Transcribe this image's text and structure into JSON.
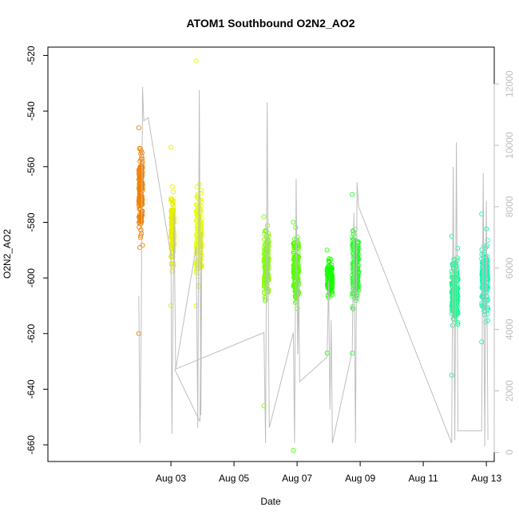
{
  "chart_data": {
    "type": "scatter",
    "title": "ATOM1 Southbound O2N2_AO2",
    "xlabel": "Date",
    "ylabel": "O2N2_AO2",
    "ylim": [
      -666,
      -517
    ],
    "xlim": [
      -0.9,
      13.25
    ],
    "xlim_note": "x values are days of August (e.g. 3.0 = Aug 03 00:00)",
    "y2lim": [
      -300,
      13200
    ],
    "x_ticks": [
      {
        "value": 3,
        "label": "Aug 03"
      },
      {
        "value": 5,
        "label": "Aug 05"
      },
      {
        "value": 7,
        "label": "Aug 07"
      },
      {
        "value": 9,
        "label": "Aug 09"
      },
      {
        "value": 11,
        "label": "Aug 11"
      },
      {
        "value": 13,
        "label": "Aug 13"
      }
    ],
    "y_ticks": [
      -660,
      -640,
      -620,
      -600,
      -580,
      -560,
      -540,
      -520
    ],
    "y2_ticks": [
      0,
      2000,
      4000,
      6000,
      8000,
      10000,
      12000
    ],
    "grid": false,
    "legend": "none",
    "colors": {
      "trace": "#bebebe",
      "axis": "#000000",
      "secondary_axis": "#bebebe"
    },
    "scatter_series": [
      {
        "color": "#f08000",
        "x_start": 1.98,
        "x_end": 2.1,
        "y_center": -570,
        "y_spread": 12,
        "y_min": -620,
        "y_max": -546,
        "n": 170
      },
      {
        "color": "#e6ee00",
        "x_start": 3.0,
        "x_end": 3.1,
        "y_center": -582,
        "y_spread": 10,
        "y_min": -610,
        "y_max": -553,
        "n": 130
      },
      {
        "color": "#e6ff00",
        "x_start": 3.8,
        "x_end": 3.98,
        "y_center": -585,
        "y_spread": 12,
        "y_min": -610,
        "y_max": -522,
        "n": 190
      },
      {
        "color": "#80ff00",
        "x_start": 5.95,
        "x_end": 6.1,
        "y_center": -596,
        "y_spread": 10,
        "y_min": -646,
        "y_max": -578,
        "n": 160
      },
      {
        "color": "#55ff00",
        "x_start": 6.88,
        "x_end": 7.05,
        "y_center": -597,
        "y_spread": 10,
        "y_min": -662,
        "y_max": -580,
        "n": 170
      },
      {
        "color": "#1aff00",
        "x_start": 7.95,
        "x_end": 8.12,
        "y_center": -600,
        "y_spread": 5,
        "y_min": -627,
        "y_max": -590,
        "n": 140
      },
      {
        "color": "#22ff22",
        "x_start": 8.75,
        "x_end": 8.95,
        "y_center": -596,
        "y_spread": 10,
        "y_min": -627,
        "y_max": -570,
        "n": 200
      },
      {
        "color": "#00ff88",
        "x_start": 11.9,
        "x_end": 12.1,
        "y_center": -605,
        "y_spread": 10,
        "y_min": -635,
        "y_max": -585,
        "n": 170
      },
      {
        "color": "#00ffb0",
        "x_start": 12.85,
        "x_end": 13.05,
        "y_center": -600,
        "y_spread": 10,
        "y_min": -623,
        "y_max": -577,
        "n": 170
      }
    ],
    "trace_line_secondary_axis": [
      [
        1.98,
        5100
      ],
      [
        2.02,
        300
      ],
      [
        2.06,
        4200
      ],
      [
        2.1,
        11900
      ],
      [
        2.14,
        10800
      ],
      [
        2.28,
        10900
      ],
      [
        3.0,
        6400
      ],
      [
        3.03,
        600
      ],
      [
        3.06,
        4100
      ],
      [
        3.1,
        7800
      ],
      [
        3.15,
        2700
      ],
      [
        3.8,
        6700
      ],
      [
        3.85,
        800
      ],
      [
        3.9,
        11800
      ],
      [
        3.95,
        1200
      ],
      [
        3.98,
        7200
      ],
      [
        3.92,
        1000
      ],
      [
        3.12,
        2700
      ],
      [
        5.95,
        3900
      ],
      [
        6.0,
        300
      ],
      [
        6.05,
        11400
      ],
      [
        6.1,
        3300
      ],
      [
        6.12,
        800
      ],
      [
        6.88,
        3900
      ],
      [
        6.92,
        300
      ],
      [
        6.97,
        8900
      ],
      [
        7.02,
        3200
      ],
      [
        7.05,
        5600
      ],
      [
        7.08,
        2300
      ],
      [
        7.95,
        3100
      ],
      [
        8.0,
        5600
      ],
      [
        8.04,
        1400
      ],
      [
        8.08,
        4300
      ],
      [
        8.12,
        300
      ],
      [
        8.75,
        3300
      ],
      [
        8.8,
        7800
      ],
      [
        8.85,
        300
      ],
      [
        8.9,
        8800
      ],
      [
        8.95,
        8000
      ],
      [
        11.9,
        300
      ],
      [
        11.95,
        9300
      ],
      [
        12.0,
        400
      ],
      [
        12.05,
        10100
      ],
      [
        12.1,
        700
      ],
      [
        12.85,
        700
      ],
      [
        12.9,
        9100
      ],
      [
        12.95,
        200
      ],
      [
        13.0,
        8200
      ],
      [
        13.05,
        400
      ]
    ]
  }
}
